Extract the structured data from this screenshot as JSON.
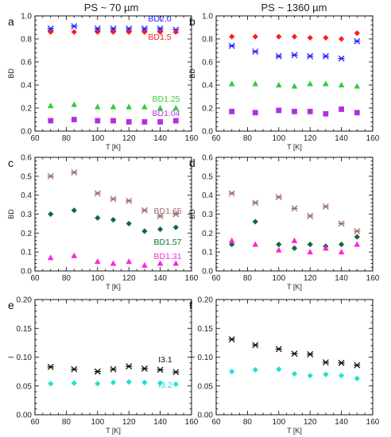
{
  "columns": [
    {
      "title": "PS ~ 70 µm"
    },
    {
      "title": "PS ~ 1360 µm"
    }
  ],
  "chart_data": [
    {
      "type": "scatter",
      "panel_label": "a",
      "xlabel": "T [K]",
      "ylabel": "BD",
      "xlim": [
        60,
        160
      ],
      "ylim": [
        0.0,
        1.0
      ],
      "xticks": [
        "60",
        "80",
        "100",
        "120",
        "140",
        "160"
      ],
      "yticks": [
        "0.0",
        "0.2",
        "0.4",
        "0.6",
        "0.8",
        "1.0"
      ],
      "series": [
        {
          "name": "BD2.0",
          "color": "#1f1fff",
          "marker": "asterisk",
          "x": [
            70,
            85,
            100,
            110,
            120,
            130,
            140,
            150
          ],
          "y": [
            0.89,
            0.91,
            0.89,
            0.89,
            0.89,
            0.89,
            0.89,
            0.88
          ]
        },
        {
          "name": "BD1.5",
          "color": "#ff1a1a",
          "marker": "diamond",
          "x": [
            70,
            85,
            100,
            110,
            120,
            130,
            140,
            150
          ],
          "y": [
            0.86,
            0.86,
            0.86,
            0.86,
            0.86,
            0.86,
            0.86,
            0.86
          ]
        },
        {
          "name": "BD1.25",
          "color": "#33cc33",
          "marker": "triangle",
          "x": [
            70,
            85,
            100,
            110,
            120,
            130,
            140,
            150
          ],
          "y": [
            0.22,
            0.23,
            0.21,
            0.21,
            0.21,
            0.21,
            0.2,
            0.2
          ]
        },
        {
          "name": "BD1.04",
          "color": "#b030e0",
          "marker": "square",
          "x": [
            70,
            85,
            100,
            110,
            120,
            130,
            140,
            150
          ],
          "y": [
            0.09,
            0.1,
            0.09,
            0.09,
            0.08,
            0.08,
            0.08,
            0.09
          ]
        }
      ]
    },
    {
      "type": "scatter",
      "panel_label": "b",
      "xlabel": "T [K]",
      "ylabel": "BD",
      "xlim": [
        60,
        160
      ],
      "ylim": [
        0.0,
        1.0
      ],
      "xticks": [
        "60",
        "80",
        "100",
        "120",
        "140",
        "160"
      ],
      "yticks": [
        "0.0",
        "0.2",
        "0.4",
        "0.6",
        "0.8",
        "1.0"
      ],
      "series": [
        {
          "color": "#ff1a1a",
          "marker": "diamond",
          "x": [
            70,
            85,
            100,
            110,
            120,
            130,
            140,
            150
          ],
          "y": [
            0.82,
            0.82,
            0.82,
            0.82,
            0.81,
            0.81,
            0.8,
            0.85
          ]
        },
        {
          "color": "#1f1fff",
          "marker": "asterisk",
          "x": [
            70,
            85,
            100,
            110,
            120,
            130,
            140,
            150
          ],
          "y": [
            0.74,
            0.69,
            0.65,
            0.66,
            0.65,
            0.65,
            0.63,
            0.78
          ]
        },
        {
          "color": "#33cc33",
          "marker": "triangle",
          "x": [
            70,
            85,
            100,
            110,
            120,
            130,
            140,
            150
          ],
          "y": [
            0.41,
            0.41,
            0.4,
            0.39,
            0.41,
            0.41,
            0.4,
            0.39
          ]
        },
        {
          "color": "#b030e0",
          "marker": "square",
          "x": [
            70,
            85,
            100,
            110,
            120,
            130,
            140,
            150
          ],
          "y": [
            0.17,
            0.16,
            0.18,
            0.17,
            0.17,
            0.15,
            0.19,
            0.16
          ]
        }
      ]
    },
    {
      "type": "scatter",
      "panel_label": "c",
      "xlabel": "T [K]",
      "ylabel": "BD",
      "xlim": [
        60,
        160
      ],
      "ylim": [
        0.0,
        0.6
      ],
      "xticks": [
        "60",
        "80",
        "100",
        "120",
        "140",
        "160"
      ],
      "yticks": [
        "0.0",
        "0.1",
        "0.2",
        "0.3",
        "0.4",
        "0.5",
        "0.6"
      ],
      "series": [
        {
          "name": "BD1.65",
          "color": "#9b6b6b",
          "marker": "asterisk",
          "x": [
            70,
            85,
            100,
            110,
            120,
            130,
            140,
            150
          ],
          "y": [
            0.5,
            0.52,
            0.41,
            0.38,
            0.37,
            0.32,
            0.29,
            0.3
          ]
        },
        {
          "name": "BD1.57",
          "color": "#0f6b3a",
          "marker": "diamond",
          "x": [
            70,
            85,
            100,
            110,
            120,
            130,
            140,
            150
          ],
          "y": [
            0.3,
            0.32,
            0.28,
            0.27,
            0.25,
            0.21,
            0.22,
            0.23
          ]
        },
        {
          "name": "BD1.31",
          "color": "#ff22dd",
          "marker": "triangle",
          "x": [
            70,
            85,
            100,
            110,
            120,
            130,
            140,
            150
          ],
          "y": [
            0.07,
            0.08,
            0.05,
            0.04,
            0.05,
            0.03,
            0.04,
            0.04
          ]
        }
      ]
    },
    {
      "type": "scatter",
      "panel_label": "d",
      "xlabel": "T [K]",
      "ylabel": "BD",
      "xlim": [
        60,
        160
      ],
      "ylim": [
        0.0,
        0.6
      ],
      "xticks": [
        "60",
        "80",
        "100",
        "120",
        "140",
        "160"
      ],
      "yticks": [
        "0.0",
        "0.1",
        "0.2",
        "0.3",
        "0.4",
        "0.5",
        "0.6"
      ],
      "series": [
        {
          "color": "#9b6b6b",
          "marker": "asterisk",
          "x": [
            70,
            85,
            100,
            110,
            120,
            130,
            140,
            150
          ],
          "y": [
            0.41,
            0.36,
            0.39,
            0.33,
            0.29,
            0.34,
            0.25,
            0.21
          ]
        },
        {
          "color": "#0f6b3a",
          "marker": "diamond",
          "x": [
            70,
            85,
            100,
            110,
            120,
            130,
            140,
            150
          ],
          "y": [
            0.14,
            0.26,
            0.14,
            0.12,
            0.14,
            0.13,
            0.14,
            0.18
          ]
        },
        {
          "color": "#ff22dd",
          "marker": "triangle",
          "x": [
            70,
            85,
            100,
            110,
            120,
            130,
            140,
            150
          ],
          "y": [
            0.16,
            0.14,
            0.11,
            0.16,
            0.1,
            0.12,
            0.1,
            0.14
          ]
        }
      ]
    },
    {
      "type": "scatter",
      "panel_label": "e",
      "xlabel": "T [K]",
      "ylabel": "I",
      "xlim": [
        60,
        160
      ],
      "ylim": [
        0.0,
        0.2
      ],
      "xticks": [
        "60",
        "80",
        "100",
        "120",
        "140",
        "160"
      ],
      "yticks": [
        "0.00",
        "0.05",
        "0.10",
        "0.15",
        "0.20"
      ],
      "series": [
        {
          "name": "I3.1",
          "color": "#111111",
          "marker": "asterisk",
          "x": [
            70,
            85,
            100,
            110,
            120,
            130,
            140,
            150
          ],
          "y": [
            0.083,
            0.079,
            0.075,
            0.079,
            0.084,
            0.08,
            0.078,
            0.074
          ]
        },
        {
          "name": "I3.2",
          "color": "#22e0d0",
          "marker": "diamond",
          "x": [
            70,
            85,
            100,
            110,
            120,
            130,
            140,
            150
          ],
          "y": [
            0.054,
            0.055,
            0.054,
            0.056,
            0.057,
            0.056,
            0.055,
            0.053
          ]
        }
      ]
    },
    {
      "type": "scatter",
      "panel_label": "f",
      "xlabel": "T [K]",
      "ylabel": "I",
      "xlim": [
        60,
        160
      ],
      "ylim": [
        0.0,
        0.2
      ],
      "xticks": [
        "60",
        "80",
        "100",
        "120",
        "140",
        "160"
      ],
      "yticks": [
        "0.00",
        "0.05",
        "0.10",
        "0.15",
        "0.20"
      ],
      "series": [
        {
          "color": "#111111",
          "marker": "asterisk",
          "x": [
            70,
            85,
            100,
            110,
            120,
            130,
            140,
            150
          ],
          "y": [
            0.131,
            0.121,
            0.114,
            0.106,
            0.105,
            0.091,
            0.09,
            0.086
          ]
        },
        {
          "color": "#22e0d0",
          "marker": "diamond",
          "x": [
            70,
            85,
            100,
            110,
            120,
            130,
            140,
            150
          ],
          "y": [
            0.075,
            0.078,
            0.079,
            0.071,
            0.068,
            0.07,
            0.068,
            0.063
          ]
        }
      ]
    }
  ]
}
